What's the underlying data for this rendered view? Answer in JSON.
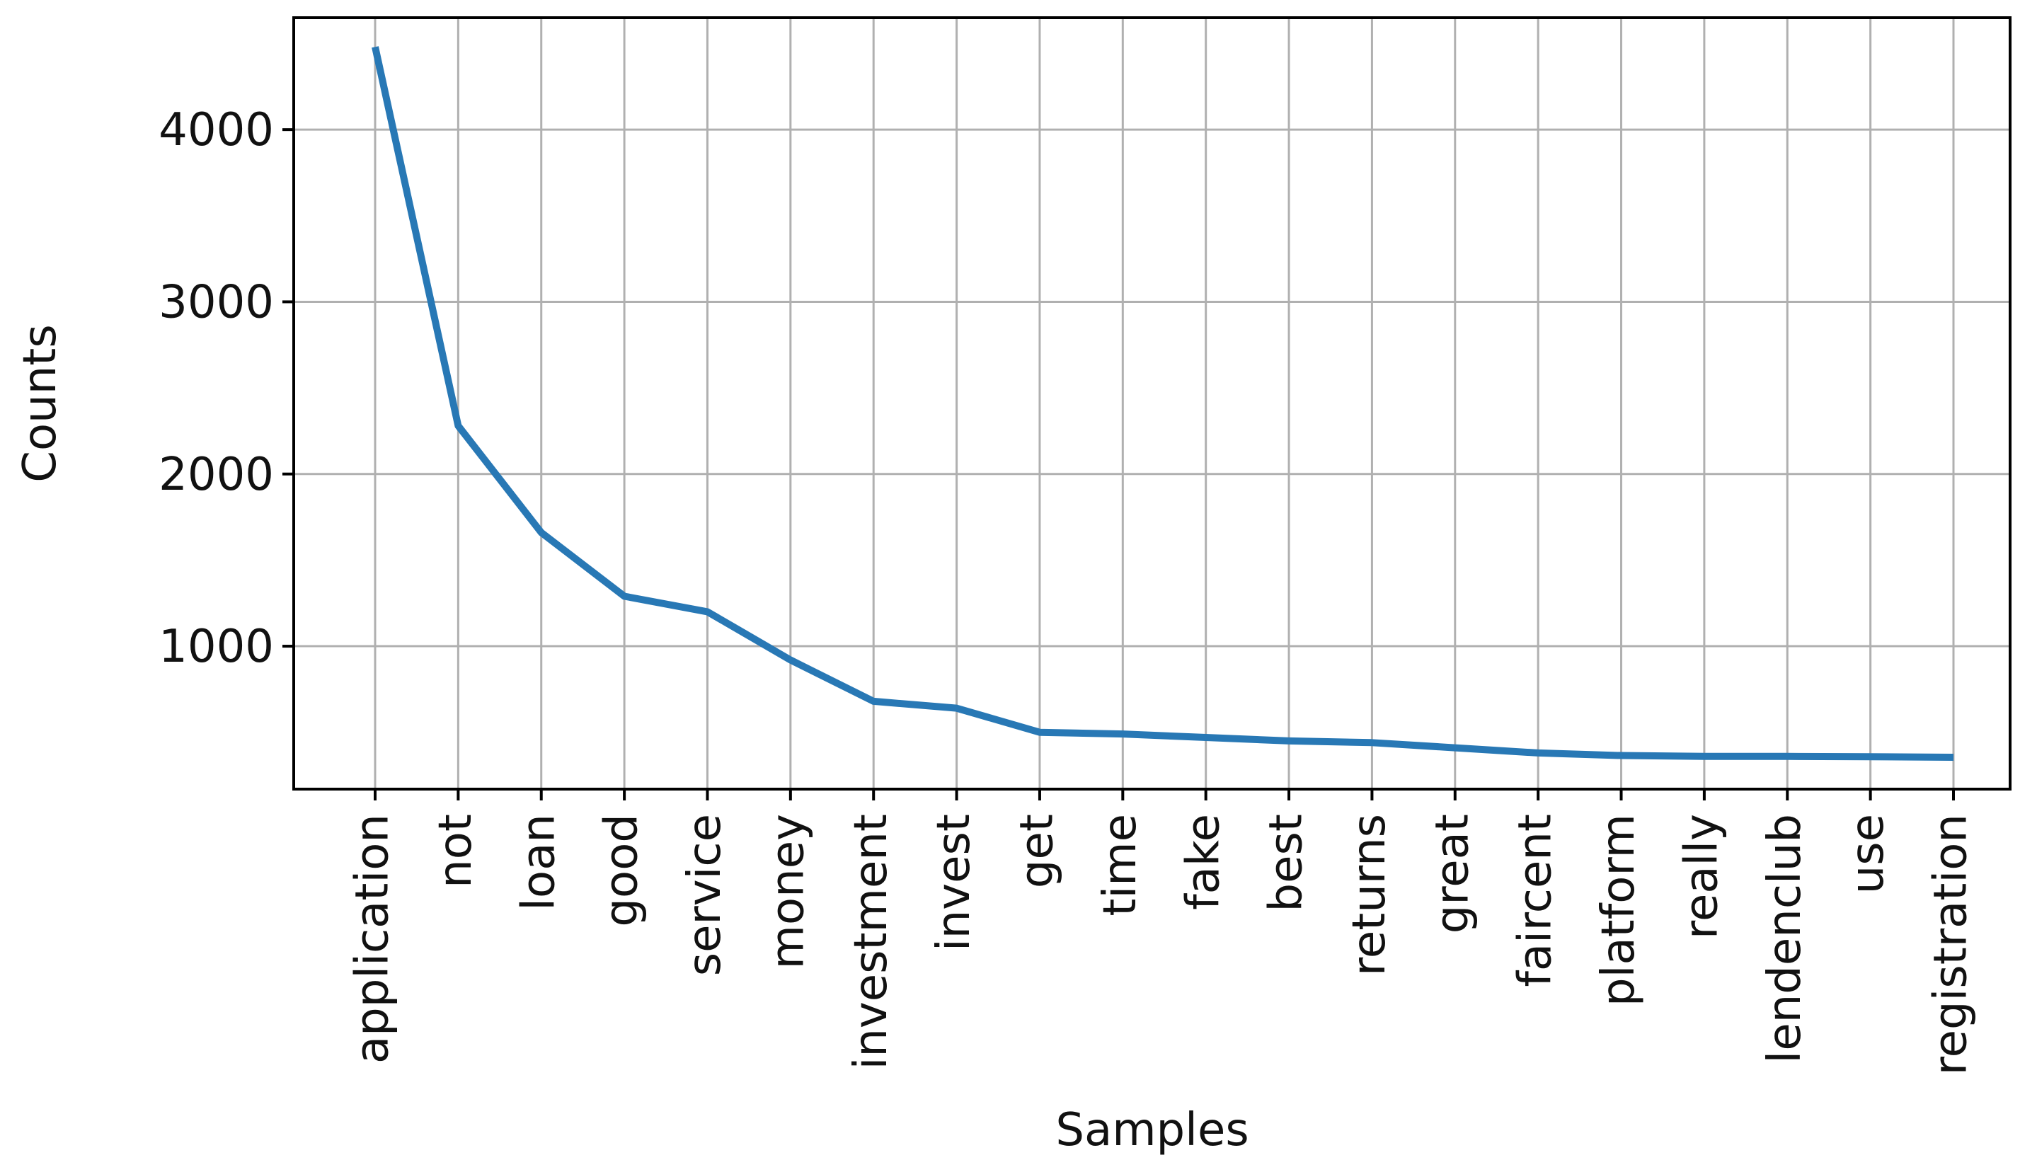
{
  "chart_data": {
    "type": "line",
    "title": "",
    "xlabel": "Samples",
    "ylabel": "Counts",
    "categories": [
      "application",
      "not",
      "loan",
      "good",
      "service",
      "money",
      "investment",
      "invest",
      "get",
      "time",
      "fake",
      "best",
      "returns",
      "great",
      "faircent",
      "platform",
      "really",
      "lendenclub",
      "use",
      "registration"
    ],
    "series": [
      {
        "values": [
          4480,
          2280,
          1660,
          1290,
          1200,
          920,
          680,
          640,
          500,
          490,
          470,
          450,
          440,
          410,
          380,
          365,
          360,
          360,
          358,
          355
        ]
      }
    ],
    "ylim": [
      170,
      4650
    ],
    "yticks": [
      1000,
      2000,
      3000,
      4000
    ],
    "grid": true,
    "line_color": "#2878b5",
    "grid_color": "#b0b0b0"
  }
}
